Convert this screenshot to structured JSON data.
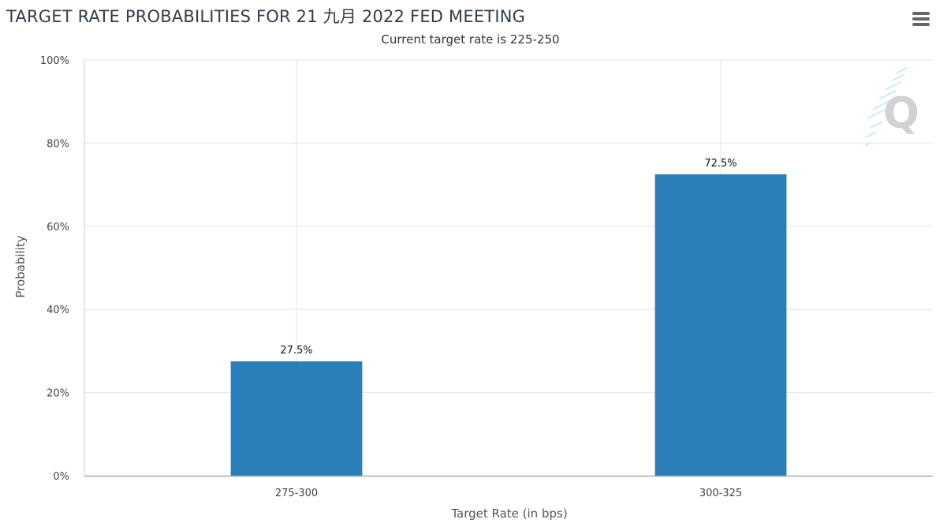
{
  "menu": {
    "icon": "hamburger-menu-icon"
  },
  "watermark": {
    "text": "Q",
    "icon": "q-logo-icon"
  },
  "chart_data": {
    "type": "bar",
    "title": "TARGET RATE PROBABILITIES FOR 21 九月 2022 FED MEETING",
    "subtitle": "Current target rate is 225-250",
    "xlabel": "Target Rate (in bps)",
    "ylabel": "Probability",
    "categories": [
      "275-300",
      "300-325"
    ],
    "values": [
      27.5,
      72.5
    ],
    "data_labels": [
      "27.5%",
      "72.5%"
    ],
    "ylim": [
      0,
      100
    ],
    "yticks": [
      "0%",
      "20%",
      "40%",
      "60%",
      "80%",
      "100%"
    ],
    "grid": true,
    "legend": "none",
    "bar_color": "#2a7fb8"
  }
}
